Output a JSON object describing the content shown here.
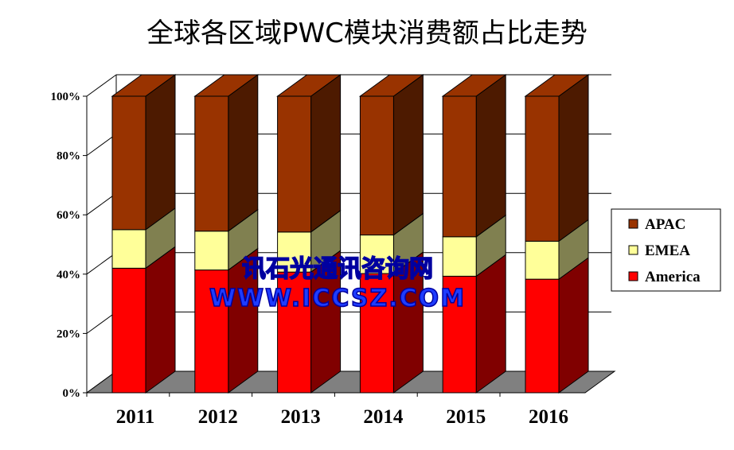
{
  "chart_data": {
    "type": "bar",
    "stacked": "percent",
    "three_d": true,
    "title": "全球各区域PWC模块消费额占比走势",
    "categories": [
      "2011",
      "2012",
      "2013",
      "2014",
      "2015",
      "2016"
    ],
    "series": [
      {
        "name": "America",
        "values": [
          42.0,
          41.4,
          40.7,
          40.2,
          39.3,
          38.3
        ],
        "color": "#ff0000",
        "side_color": "#800000"
      },
      {
        "name": "EMEA",
        "values": [
          13.0,
          13.1,
          13.5,
          13.0,
          13.3,
          12.8
        ],
        "color": "#ffff99",
        "side_color": "#808050"
      },
      {
        "name": "APAC",
        "values": [
          45.0,
          45.5,
          45.8,
          46.8,
          47.4,
          48.9
        ],
        "color": "#993300",
        "side_color": "#4d1a00"
      }
    ],
    "yticks": [
      "0%",
      "20%",
      "40%",
      "60%",
      "80%",
      "100%"
    ],
    "ylim": [
      0,
      100
    ],
    "grid": true,
    "legend_position": "right",
    "legend_order": [
      "APAC",
      "EMEA",
      "America"
    ]
  },
  "watermark": {
    "line1": "讯石光通讯咨询网",
    "line2": "WWW.ICCSZ.COM"
  }
}
